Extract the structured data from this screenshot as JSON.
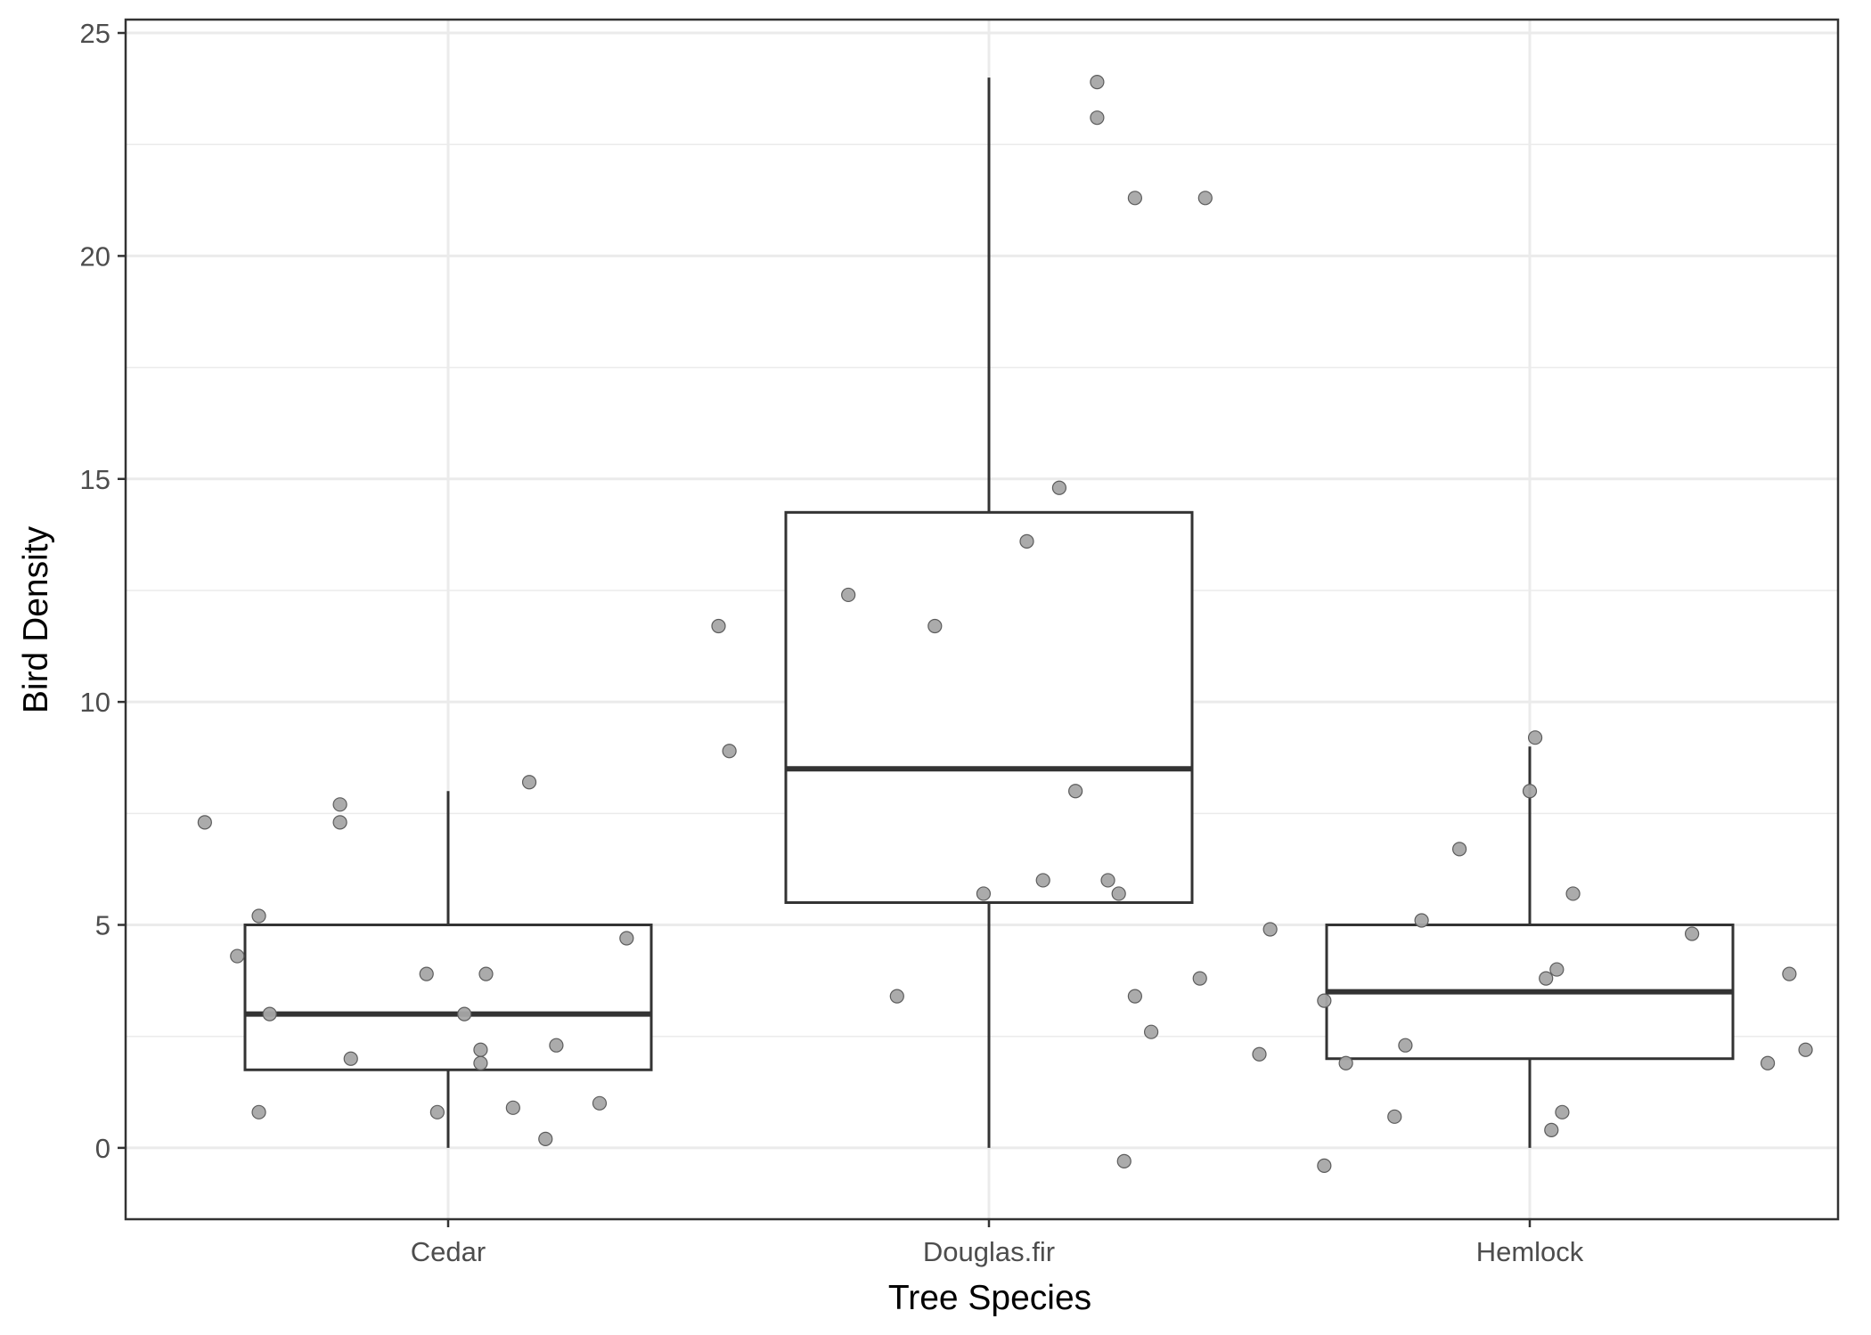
{
  "chart_data": {
    "type": "boxplot",
    "title": "",
    "xlabel": "Tree Species",
    "ylabel": "Bird Density",
    "ylim": [
      -1.6,
      25.3
    ],
    "y_ticks": [
      0,
      5,
      10,
      15,
      20,
      25
    ],
    "y_tick_labels": [
      "0",
      "5",
      "10",
      "15",
      "20",
      "25"
    ],
    "grid": true,
    "legend": "none",
    "categories": [
      "Cedar",
      "Douglas.fir",
      "Hemlock"
    ],
    "boxes": [
      {
        "category": "Cedar",
        "whisker_low": 0,
        "q1": 1.75,
        "median": 3.0,
        "q3": 5.0,
        "whisker_high": 8.0
      },
      {
        "category": "Douglas.fir",
        "whisker_low": 0,
        "q1": 5.5,
        "median": 8.5,
        "q3": 14.25,
        "whisker_high": 24.0
      },
      {
        "category": "Hemlock",
        "whisker_low": 0,
        "q1": 2.0,
        "median": 3.5,
        "q3": 5.0,
        "whisker_high": 9.0
      }
    ],
    "points": [
      {
        "category": "Cedar",
        "values": [
          7.3,
          7.7,
          7.3,
          8.2,
          5.2,
          4.3,
          3.0,
          3.9,
          3.9,
          4.7,
          3.0,
          2.0,
          2.2,
          1.9,
          2.3,
          0.8,
          0.8,
          0.9,
          1.0,
          0.2
        ]
      },
      {
        "category": "Douglas.fir",
        "values": [
          23.9,
          23.1,
          21.3,
          21.3,
          14.8,
          13.6,
          12.4,
          11.7,
          11.7,
          8.9,
          8.0,
          6.0,
          6.0,
          5.7,
          5.7,
          3.4,
          3.4,
          3.8,
          2.6,
          -0.3
        ]
      },
      {
        "category": "Hemlock",
        "values": [
          9.2,
          8.0,
          6.7,
          5.7,
          5.1,
          4.9,
          4.8,
          4.0,
          3.8,
          3.9,
          3.3,
          2.1,
          1.9,
          2.3,
          1.9,
          2.2,
          0.7,
          0.8,
          0.4,
          -0.4
        ]
      }
    ],
    "jitter_offsets": [
      [
        -0.45,
        -0.2,
        -0.2,
        0.15,
        -0.35,
        -0.39,
        -0.33,
        -0.04,
        0.07,
        0.33,
        0.03,
        -0.18,
        0.06,
        0.06,
        0.2,
        -0.35,
        -0.02,
        0.12,
        0.28,
        0.18
      ],
      [
        0.2,
        0.2,
        0.27,
        0.4,
        0.13,
        0.07,
        -0.26,
        -0.1,
        -0.5,
        -0.48,
        0.16,
        0.1,
        0.22,
        -0.01,
        0.24,
        -0.17,
        0.27,
        0.39,
        0.3,
        0.25
      ],
      [
        0.01,
        0.0,
        -0.13,
        0.08,
        -0.2,
        -0.48,
        0.3,
        0.05,
        0.03,
        0.48,
        -0.38,
        -0.5,
        -0.34,
        -0.23,
        0.44,
        0.51,
        -0.25,
        0.06,
        0.04,
        -0.38
      ]
    ],
    "colors": {
      "point": "#a6a6a6",
      "point_stroke": "#5c5c5c",
      "box": "#333333",
      "grid": "#ebebeb",
      "panel_border": "#333333",
      "background": "#ffffff"
    }
  }
}
